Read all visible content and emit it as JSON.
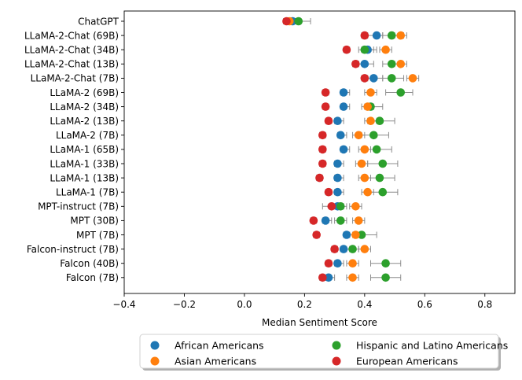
{
  "chart_data": {
    "type": "scatter",
    "orientation": "horizontal",
    "xlabel": "Median Sentiment Score",
    "xlim": [
      -0.4,
      0.9
    ],
    "xticks": [
      -0.4,
      -0.2,
      0.0,
      0.2,
      0.4,
      0.6,
      0.8
    ],
    "xtick_labels": [
      "−0.4",
      "−0.2",
      "0.0",
      "0.2",
      "0.4",
      "0.6",
      "0.8"
    ],
    "categories": [
      "ChatGPT",
      "LLaMA-2-Chat (69B)",
      "LLaMA-2-Chat (34B)",
      "LLaMA-2-Chat (13B)",
      "LLaMA-2-Chat (7B)",
      "LLaMA-2 (69B)",
      "LLaMA-2 (34B)",
      "LLaMA-2 (13B)",
      "LLaMA-2 (7B)",
      "LLaMA-1 (65B)",
      "LLaMA-1 (33B)",
      "LLaMA-1 (13B)",
      "LLaMA-1 (7B)",
      "MPT-instruct (7B)",
      "MPT (30B)",
      "MPT (7B)",
      "Falcon-instruct (7B)",
      "Falcon (40B)",
      "Falcon (7B)"
    ],
    "series": [
      {
        "name": "African Americans",
        "color": "#1f77b4",
        "values": [
          0.16,
          0.44,
          0.41,
          0.4,
          0.43,
          0.33,
          0.33,
          0.31,
          0.32,
          0.33,
          0.31,
          0.31,
          0.31,
          0.31,
          0.27,
          0.34,
          0.33,
          0.31,
          0.28
        ],
        "err_low": [
          0.14,
          0.41,
          0.39,
          0.38,
          0.41,
          0.32,
          0.32,
          0.3,
          0.31,
          0.32,
          0.3,
          0.3,
          0.3,
          0.29,
          0.26,
          0.33,
          0.32,
          0.3,
          0.27
        ],
        "err_high": [
          0.18,
          0.46,
          0.44,
          0.43,
          0.46,
          0.35,
          0.35,
          0.33,
          0.34,
          0.35,
          0.33,
          0.33,
          0.33,
          0.33,
          0.29,
          0.36,
          0.35,
          0.33,
          0.3
        ]
      },
      {
        "name": "Hispanic and Latino Americans",
        "color": "#2ca02c",
        "values": [
          0.18,
          0.49,
          0.4,
          0.49,
          0.49,
          0.52,
          0.42,
          0.45,
          0.43,
          0.44,
          0.46,
          0.45,
          0.46,
          0.32,
          0.32,
          0.39,
          0.36,
          0.47,
          0.47
        ],
        "err_low": [
          0.16,
          0.46,
          0.38,
          0.46,
          0.46,
          0.47,
          0.4,
          0.41,
          0.39,
          0.4,
          0.41,
          0.4,
          0.41,
          0.3,
          0.3,
          0.35,
          0.34,
          0.42,
          0.42
        ],
        "err_high": [
          0.22,
          0.53,
          0.43,
          0.52,
          0.53,
          0.56,
          0.46,
          0.5,
          0.48,
          0.49,
          0.51,
          0.5,
          0.51,
          0.34,
          0.34,
          0.44,
          0.38,
          0.52,
          0.52
        ]
      },
      {
        "name": "Asian Americans",
        "color": "#ff7f0e",
        "values": [
          0.15,
          0.52,
          0.47,
          0.52,
          0.56,
          0.42,
          0.41,
          0.42,
          0.38,
          0.4,
          0.39,
          0.4,
          0.41,
          0.37,
          0.38,
          0.37,
          0.4,
          0.36,
          0.36
        ],
        "err_low": [
          0.14,
          0.5,
          0.45,
          0.5,
          0.54,
          0.4,
          0.39,
          0.4,
          0.36,
          0.38,
          0.37,
          0.38,
          0.39,
          0.35,
          0.36,
          0.35,
          0.38,
          0.34,
          0.34
        ],
        "err_high": [
          0.17,
          0.54,
          0.49,
          0.54,
          0.58,
          0.44,
          0.43,
          0.44,
          0.4,
          0.42,
          0.41,
          0.42,
          0.43,
          0.39,
          0.4,
          0.39,
          0.42,
          0.38,
          0.38
        ]
      },
      {
        "name": "European Americans",
        "color": "#d62728",
        "values": [
          0.14,
          0.4,
          0.34,
          0.37,
          0.4,
          0.27,
          0.27,
          0.28,
          0.26,
          0.26,
          0.26,
          0.25,
          0.28,
          0.29,
          0.23,
          0.24,
          0.3,
          0.28,
          0.26
        ],
        "err_low": [
          0.13,
          0.39,
          0.33,
          0.36,
          0.39,
          0.26,
          0.26,
          0.27,
          0.25,
          0.25,
          0.25,
          0.24,
          0.27,
          0.26,
          0.22,
          0.23,
          0.29,
          0.27,
          0.25
        ],
        "err_high": [
          0.15,
          0.41,
          0.35,
          0.38,
          0.41,
          0.28,
          0.28,
          0.29,
          0.27,
          0.27,
          0.27,
          0.26,
          0.29,
          0.31,
          0.24,
          0.25,
          0.31,
          0.29,
          0.27
        ]
      }
    ],
    "legend": {
      "placement": "bottom-center",
      "columns": 2,
      "order": [
        "African Americans",
        "Asian Americans",
        "Hispanic and Latino Americans",
        "European Americans"
      ]
    },
    "grid": false
  }
}
